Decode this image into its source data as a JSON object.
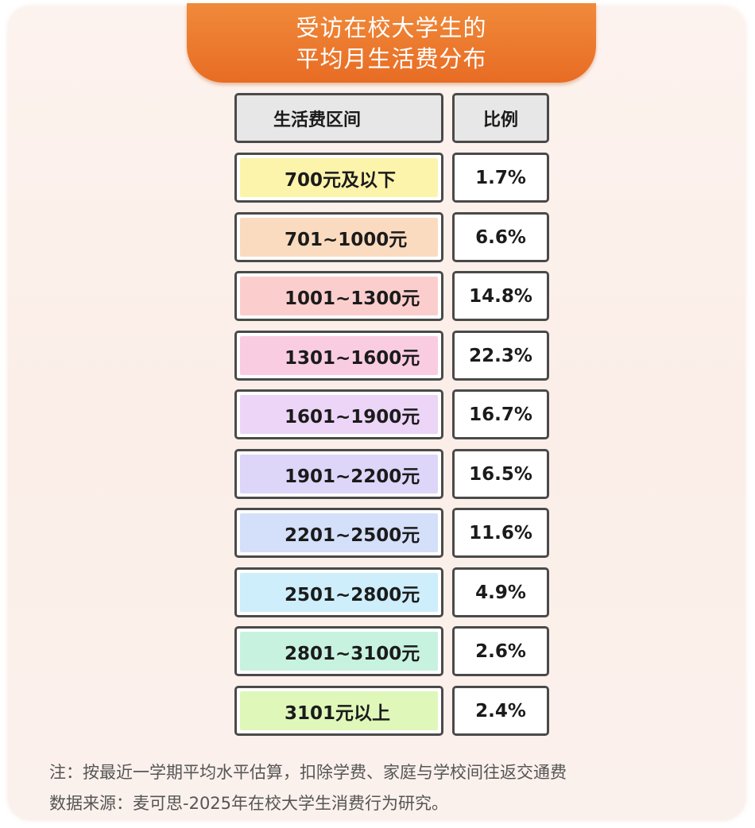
{
  "title": {
    "line1": "受访在校大学生的",
    "line2": "平均月生活费分布"
  },
  "chart_data": {
    "type": "table",
    "columns": [
      "生活费区间",
      "比例"
    ],
    "rows": [
      {
        "range": "700元及以下",
        "share": "1.7%",
        "value": 1.7,
        "color": "#fdf3a3"
      },
      {
        "range": "701~1000元",
        "share": "6.6%",
        "value": 6.6,
        "color": "#fbd7b8"
      },
      {
        "range": "1001~1300元",
        "share": "14.8%",
        "value": 14.8,
        "color": "#fbc9c8"
      },
      {
        "range": "1301~1600元",
        "share": "22.3%",
        "value": 22.3,
        "color": "#f9c6de"
      },
      {
        "range": "1601~1900元",
        "share": "16.7%",
        "value": 16.7,
        "color": "#ead0f6"
      },
      {
        "range": "1901~2200元",
        "share": "16.5%",
        "value": 16.5,
        "color": "#d9d2f8"
      },
      {
        "range": "2201~2500元",
        "share": "11.6%",
        "value": 11.6,
        "color": "#cfdcf8"
      },
      {
        "range": "2501~2800元",
        "share": "4.9%",
        "value": 4.9,
        "color": "#c8ecf9"
      },
      {
        "range": "2801~3100元",
        "share": "2.6%",
        "value": 2.6,
        "color": "#c2f1dd"
      },
      {
        "range": "3101元以上",
        "share": "2.4%",
        "value": 2.4,
        "color": "#dcf6b1"
      }
    ]
  },
  "footnote": {
    "note": "注：按最近一学期平均水平估算，扣除学费、家庭与学校间往返交通费",
    "source": "数据来源：麦可思-2025年在校大学生消费行为研究。"
  }
}
